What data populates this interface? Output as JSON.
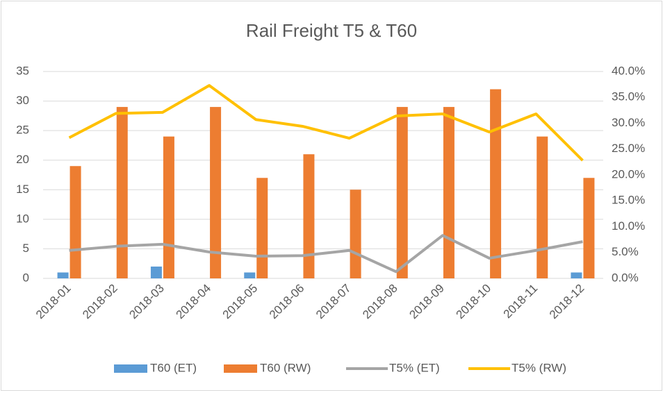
{
  "chart_data": {
    "type": "bar-line",
    "title": "Rail Freight T5 & T60",
    "categories": [
      "2018-01",
      "2018-02",
      "2018-03",
      "2018-04",
      "2018-05",
      "2018-06",
      "2018-07",
      "2018-08",
      "2018-09",
      "2018-10",
      "2018-11",
      "2018-12"
    ],
    "series": [
      {
        "name": "T60 (ET)",
        "type": "bar",
        "color": "#5b9bd5",
        "values": [
          1,
          0,
          2,
          0,
          1,
          0,
          0,
          0,
          0,
          0,
          0,
          1
        ]
      },
      {
        "name": "T60 (RW)",
        "type": "bar",
        "color": "#ed7d31",
        "values": [
          19,
          29,
          24,
          29,
          17,
          21,
          15,
          29,
          29,
          32,
          24,
          17
        ]
      },
      {
        "name": "T5% (ET)",
        "type": "line",
        "axis": "y2",
        "color": "#a5a5a5",
        "values": [
          5.4,
          6.2,
          6.6,
          5.1,
          4.3,
          4.4,
          5.4,
          1.3,
          8.3,
          3.9,
          5.4,
          7.1
        ]
      },
      {
        "name": "T5% (RW)",
        "type": "line",
        "axis": "y2",
        "color": "#ffc000",
        "values": [
          27.2,
          31.9,
          32.1,
          37.3,
          30.7,
          29.4,
          27.1,
          31.4,
          31.8,
          28.3,
          31.8,
          22.8
        ]
      }
    ],
    "ylim": [
      0,
      35
    ],
    "yticks": [
      0,
      5,
      10,
      15,
      20,
      25,
      30,
      35
    ],
    "y2lim": [
      0,
      40
    ],
    "y2ticks": [
      {
        "value": 0,
        "label": "0.0%"
      },
      {
        "value": 5,
        "label": "5.0%"
      },
      {
        "value": 10,
        "label": "10.0%"
      },
      {
        "value": 15,
        "label": "15.0%"
      },
      {
        "value": 20,
        "label": "20.0%"
      },
      {
        "value": 25,
        "label": "25.0%"
      },
      {
        "value": 30,
        "label": "30.0%"
      },
      {
        "value": 35,
        "label": "35.0%"
      },
      {
        "value": 40,
        "label": "40.0%"
      }
    ],
    "grid": true,
    "legend": "bottom"
  }
}
